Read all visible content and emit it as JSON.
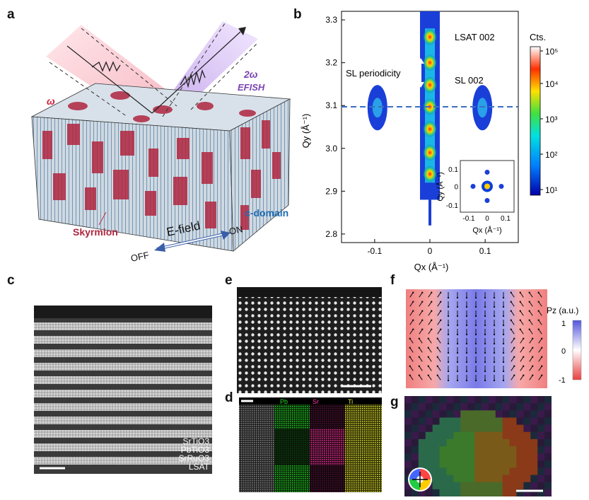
{
  "panels": {
    "a": {
      "letter": "a",
      "omega": "ω",
      "two_omega": "2ω",
      "efish": "EFISH",
      "c_domain": "c-domain",
      "skyrmion": "Skyrmion",
      "efield": "E-field",
      "off": "OFF",
      "on": "ON"
    },
    "b": {
      "letter": "b",
      "lsat": "LSAT 002",
      "sl002": "SL 002",
      "sl_period": "SL periodicity",
      "ylabel": "Qy (Å⁻¹)",
      "xlabel": "Qx (Å⁻¹)",
      "colorbar_title": "Cts.",
      "inset_ylabel": "Qy (Å⁻¹)",
      "inset_xlabel": "Qx (Å⁻¹)"
    },
    "c": {
      "letter": "c",
      "layers": [
        "SrTiO3",
        "PbTiO3",
        "SrRuO3",
        "LSAT"
      ]
    },
    "d": {
      "letter": "d",
      "maps": [
        "Pb",
        "Sr",
        "Ti"
      ],
      "map_colors": [
        "#22dd22",
        "#ff33aa",
        "#e6e633"
      ]
    },
    "e": {
      "letter": "e"
    },
    "f": {
      "letter": "f",
      "colorbar_title": "Pz (a.u.)",
      "ticks": [
        "1",
        "0",
        "-1"
      ]
    },
    "g": {
      "letter": "g"
    }
  },
  "chart_data": {
    "type": "heatmap",
    "xlabel": "Qx (Å⁻¹)",
    "ylabel": "Qy (Å⁻¹)",
    "xlim": [
      -0.16,
      0.16
    ],
    "ylim": [
      2.78,
      3.32
    ],
    "xticks": [
      -0.1,
      0,
      0.1
    ],
    "yticks": [
      2.8,
      2.9,
      3.0,
      3.1,
      3.2,
      3.3
    ],
    "xtick_labels": [
      "-0.1",
      "0",
      "0.1"
    ],
    "ytick_labels": [
      "2.8",
      "2.9",
      "3.0",
      "3.1",
      "3.2",
      "3.3"
    ],
    "reference_line_qy": 3.097,
    "peaks": [
      {
        "qx": 0,
        "qy": 3.26,
        "label": "LSAT 002"
      },
      {
        "qx": 0,
        "qy": 3.2
      },
      {
        "qx": 0,
        "qy": 3.148
      },
      {
        "qx": 0,
        "qy": 3.097,
        "label": "SL 002"
      },
      {
        "qx": 0,
        "qy": 3.045
      },
      {
        "qx": 0,
        "qy": 2.99
      },
      {
        "qx": 0,
        "qy": 2.94
      }
    ],
    "satellites": [
      {
        "qx": -0.095,
        "qy": 3.095
      },
      {
        "qx": 0.095,
        "qy": 3.095
      }
    ],
    "colorbar": {
      "title": "Cts.",
      "log": true,
      "ticks": [
        "10¹",
        "10²",
        "10³",
        "10⁴",
        "10⁵"
      ]
    },
    "inset": {
      "xticks": [
        "-0.1",
        "0",
        "0.1"
      ],
      "yticks": [
        "0.1",
        "0",
        "-0.1"
      ]
    }
  }
}
